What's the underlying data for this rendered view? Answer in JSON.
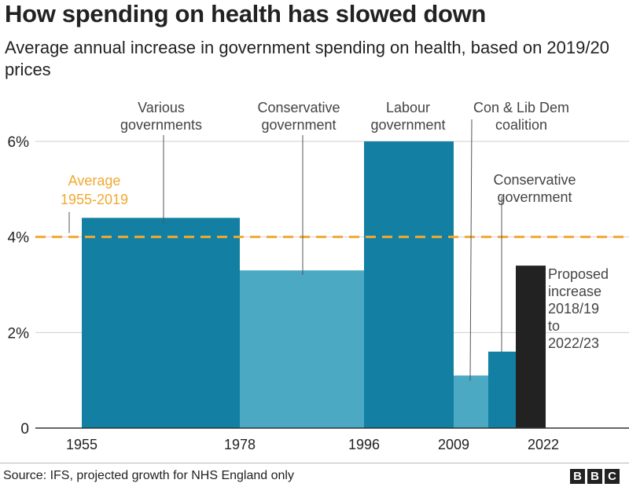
{
  "title": "How spending on health has slowed down",
  "subtitle": "Average annual increase in government spending on health, based on 2019/20 prices",
  "source": "Source: IFS, projected growth for NHS England only",
  "logo": [
    "B",
    "B",
    "C"
  ],
  "colors": {
    "dark_teal": "#137fa3",
    "light_teal": "#4ba9c4",
    "proposed": "#222222",
    "average_line": "#f0a932",
    "grid": "#cfcfcf",
    "annotation_line": "#555555"
  },
  "chart_data": {
    "type": "bar",
    "ylim": [
      0,
      6
    ],
    "y_ticks": [
      {
        "value": 0,
        "label": "0"
      },
      {
        "value": 2,
        "label": "2%"
      },
      {
        "value": 4,
        "label": "4%"
      },
      {
        "value": 6,
        "label": "6%"
      }
    ],
    "x_ticks": [
      "1955",
      "1978",
      "1996",
      "2009",
      "2022"
    ],
    "average": {
      "value": 4.0,
      "label": [
        "Average",
        "1955-2019"
      ]
    },
    "bars": [
      {
        "start": 1955,
        "end": 1978,
        "value": 4.4,
        "color": "dark_teal",
        "label": [
          "Various",
          "governments"
        ]
      },
      {
        "start": 1978,
        "end": 1996,
        "value": 3.3,
        "color": "light_teal",
        "label": [
          "Conservative",
          "government"
        ]
      },
      {
        "start": 1996,
        "end": 2009,
        "value": 6.0,
        "color": "dark_teal",
        "label": [
          "Labour",
          "government"
        ]
      },
      {
        "start": 2009,
        "end": 2013,
        "value": 1.1,
        "color": "light_teal",
        "label": [
          "Con & Lib Dem",
          "coalition"
        ]
      },
      {
        "start": 2013,
        "end": 2017,
        "value": 1.6,
        "color": "dark_teal",
        "label": [
          "Conservative",
          "government"
        ]
      },
      {
        "start": 2017,
        "end": 2021,
        "value": 3.4,
        "color": "proposed",
        "label": [
          "Proposed",
          "increase",
          "2018/19",
          "to",
          "2022/23"
        ]
      }
    ]
  }
}
